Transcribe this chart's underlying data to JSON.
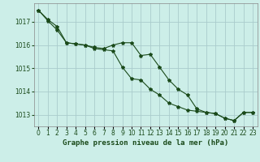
{
  "title": "Graphe pression niveau de la mer (hPa)",
  "background_color": "#cceee8",
  "grid_color": "#aacccc",
  "line_color": "#1a4a1a",
  "x_labels": [
    "0",
    "1",
    "2",
    "3",
    "4",
    "5",
    "6",
    "7",
    "8",
    "9",
    "10",
    "11",
    "12",
    "13",
    "14",
    "15",
    "16",
    "17",
    "18",
    "19",
    "20",
    "21",
    "22",
    "23"
  ],
  "hours": [
    0,
    1,
    2,
    3,
    4,
    5,
    6,
    7,
    8,
    9,
    10,
    11,
    12,
    13,
    14,
    15,
    16,
    17,
    18,
    19,
    20,
    21,
    22,
    23
  ],
  "series1": [
    1017.5,
    1017.1,
    1016.8,
    1016.1,
    1016.05,
    1016.0,
    1015.9,
    1015.85,
    1016.0,
    1016.1,
    1016.1,
    1015.55,
    1015.6,
    1015.05,
    1014.5,
    1014.1,
    1013.85,
    1013.25,
    1013.1,
    1013.05,
    1012.85,
    1012.75,
    1013.1,
    1013.1
  ],
  "series2": [
    1017.5,
    1017.05,
    1016.65,
    1016.1,
    1016.05,
    1016.0,
    1015.85,
    1015.8,
    1015.75,
    1015.05,
    1014.55,
    1014.5,
    1014.1,
    1013.85,
    1013.5,
    1013.35,
    1013.2,
    1013.15,
    1013.1,
    1013.05,
    1012.85,
    1012.75,
    1013.1,
    1013.1
  ],
  "ylim_min": 1012.5,
  "ylim_max": 1017.8,
  "yticks": [
    1013,
    1014,
    1015,
    1016,
    1017
  ],
  "title_fontsize": 6.5,
  "tick_fontsize": 5.5
}
